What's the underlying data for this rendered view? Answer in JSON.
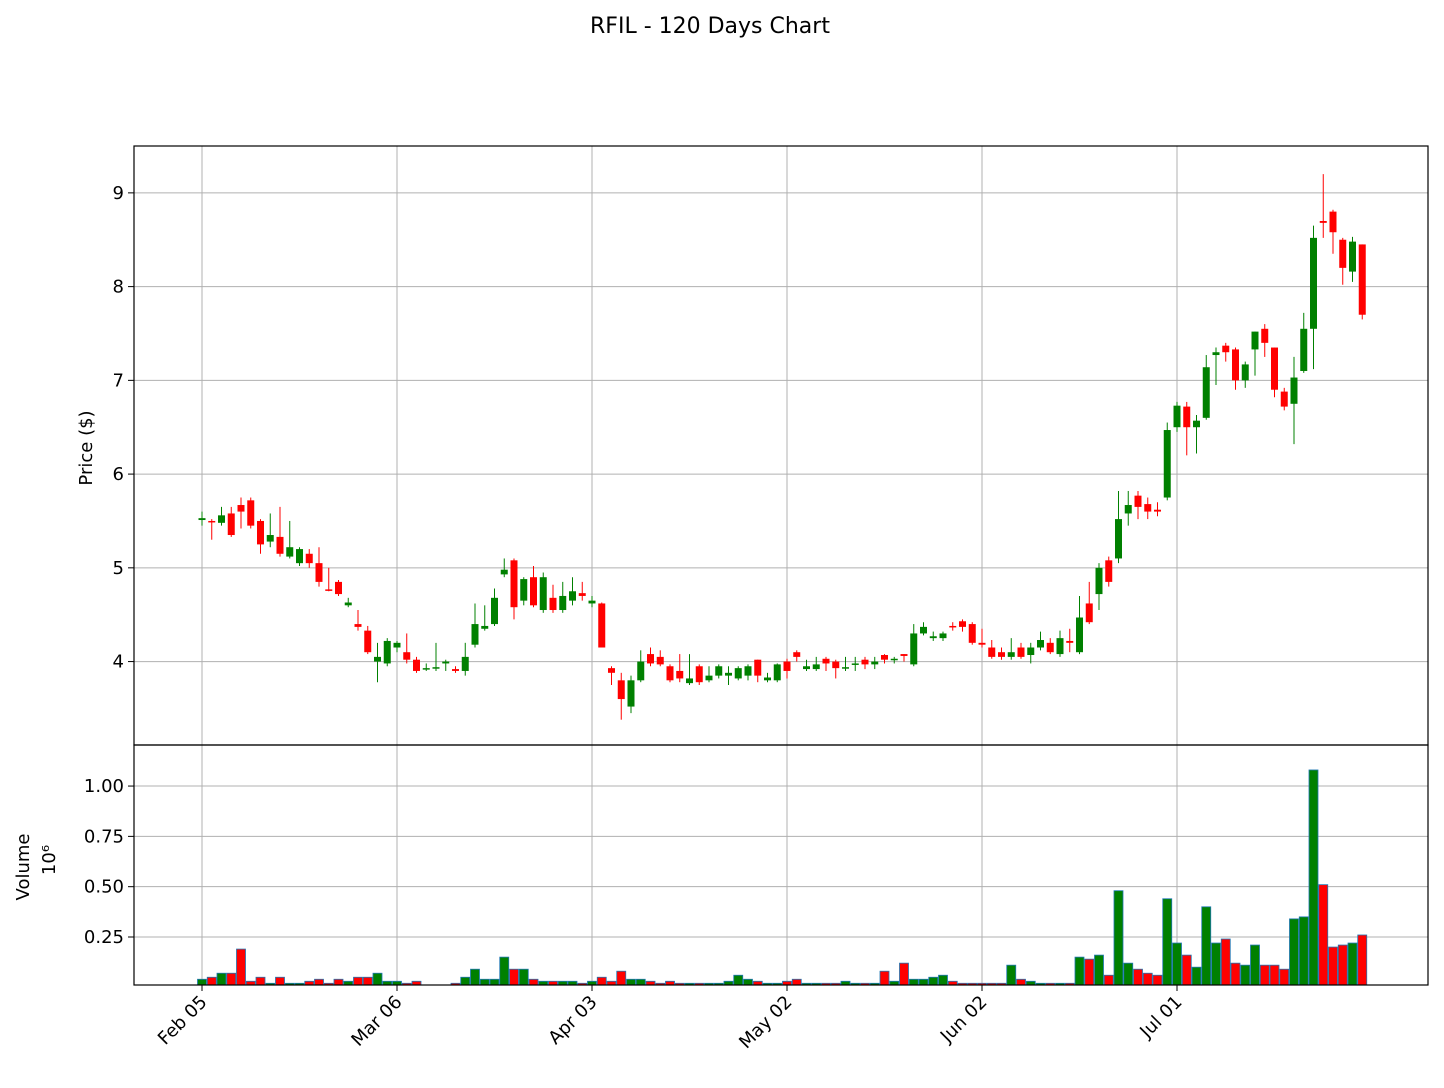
{
  "chart_data": {
    "type": "candlestick",
    "title": "RFIL - 120 Days Chart",
    "ylabel": "Price ($)",
    "y2label": "Volume",
    "y2multiplier": "10⁶",
    "categories": [
      "Feb 05",
      null,
      null,
      null,
      null,
      null,
      null,
      null,
      null,
      null,
      null,
      null,
      null,
      null,
      null,
      null,
      null,
      null,
      null,
      null,
      "Mar 06",
      null,
      null,
      null,
      null,
      null,
      null,
      null,
      null,
      null,
      null,
      null,
      null,
      null,
      null,
      null,
      null,
      null,
      null,
      null,
      "Apr 03",
      null,
      null,
      null,
      null,
      null,
      null,
      null,
      null,
      null,
      null,
      null,
      null,
      null,
      null,
      null,
      null,
      null,
      null,
      null,
      "May 02",
      null,
      null,
      null,
      null,
      null,
      null,
      null,
      null,
      null,
      null,
      null,
      null,
      null,
      null,
      null,
      null,
      null,
      null,
      null,
      "Jun 02",
      null,
      null,
      null,
      null,
      null,
      null,
      null,
      null,
      null,
      null,
      null,
      null,
      null,
      null,
      null,
      null,
      null,
      null,
      null,
      "Jul 01",
      null,
      null,
      null,
      null,
      null,
      null,
      null,
      null,
      null,
      null,
      null,
      null,
      null,
      null,
      null,
      null,
      null,
      null,
      null
    ],
    "open": [
      5.51,
      5.5,
      5.48,
      5.58,
      5.67,
      5.72,
      5.5,
      5.28,
      5.33,
      5.12,
      5.05,
      5.15,
      5.05,
      4.77,
      4.85,
      4.6,
      4.4,
      4.33,
      4.0,
      3.98,
      4.15,
      4.1,
      4.02,
      3.92,
      3.93,
      3.98,
      3.92,
      3.9,
      4.18,
      4.35,
      4.4,
      4.93,
      5.08,
      4.65,
      4.9,
      4.55,
      4.68,
      4.55,
      4.65,
      4.73,
      4.62,
      4.62,
      3.93,
      3.8,
      3.52,
      3.8,
      4.08,
      4.05,
      3.95,
      3.9,
      3.77,
      3.95,
      3.8,
      3.85,
      3.85,
      3.82,
      3.85,
      4.02,
      3.8,
      3.8,
      4.0,
      4.1,
      3.92,
      3.92,
      4.03,
      4.0,
      3.93,
      3.97,
      4.02,
      3.97,
      4.07,
      4.02,
      4.08,
      3.97,
      4.3,
      4.25,
      4.25,
      4.38,
      4.43,
      4.4,
      4.2,
      4.15,
      4.1,
      4.05,
      4.15,
      4.07,
      4.15,
      4.2,
      4.08,
      4.22,
      4.1,
      4.62,
      4.72,
      5.08,
      5.1,
      5.58,
      5.77,
      5.68,
      5.62,
      5.75,
      6.5,
      6.72,
      6.5,
      6.6,
      7.27,
      7.37,
      7.33,
      7.0,
      7.33,
      7.55,
      7.35,
      6.88,
      6.75,
      7.1,
      7.55,
      8.7,
      8.8,
      8.5,
      8.16,
      8.45
    ],
    "high": [
      5.6,
      5.52,
      5.65,
      5.65,
      5.75,
      5.75,
      5.52,
      5.58,
      5.65,
      5.5,
      5.22,
      5.2,
      5.22,
      5.0,
      4.87,
      4.68,
      4.55,
      4.38,
      4.2,
      4.25,
      4.22,
      4.3,
      4.05,
      3.98,
      4.2,
      4.02,
      3.95,
      4.2,
      4.62,
      4.6,
      4.78,
      5.1,
      5.1,
      4.9,
      5.02,
      4.95,
      4.82,
      4.85,
      4.9,
      4.85,
      4.7,
      4.63,
      3.95,
      3.88,
      3.85,
      4.12,
      4.15,
      4.12,
      3.97,
      4.08,
      4.08,
      3.97,
      3.95,
      3.97,
      3.95,
      3.95,
      3.97,
      4.02,
      3.88,
      3.98,
      4.03,
      4.12,
      4.02,
      4.05,
      4.05,
      4.02,
      4.05,
      4.05,
      4.05,
      4.05,
      4.08,
      4.05,
      4.08,
      4.4,
      4.42,
      4.32,
      4.32,
      4.42,
      4.45,
      4.42,
      4.35,
      4.23,
      4.15,
      4.25,
      4.2,
      4.2,
      4.32,
      4.25,
      4.33,
      4.35,
      4.7,
      4.85,
      5.05,
      5.12,
      5.82,
      5.82,
      5.82,
      5.75,
      5.7,
      6.55,
      6.77,
      6.77,
      6.63,
      7.27,
      7.35,
      7.4,
      7.35,
      7.2,
      7.52,
      7.6,
      7.35,
      6.92,
      7.25,
      7.72,
      8.65,
      9.2,
      8.82,
      8.52,
      8.53,
      8.45
    ],
    "low": [
      5.45,
      5.3,
      5.45,
      5.33,
      5.42,
      5.42,
      5.15,
      5.22,
      5.12,
      5.1,
      5.02,
      5.0,
      4.8,
      4.75,
      4.7,
      4.58,
      4.33,
      4.08,
      3.78,
      3.95,
      4.1,
      3.98,
      3.88,
      3.9,
      3.9,
      3.9,
      3.88,
      3.85,
      4.15,
      4.33,
      4.38,
      4.9,
      4.45,
      4.6,
      4.58,
      4.52,
      4.52,
      4.52,
      4.6,
      4.65,
      4.58,
      4.15,
      3.75,
      3.38,
      3.45,
      3.78,
      3.95,
      3.95,
      3.78,
      3.78,
      3.75,
      3.75,
      3.78,
      3.82,
      3.75,
      3.8,
      3.8,
      3.78,
      3.78,
      3.78,
      3.82,
      4.0,
      3.9,
      3.9,
      3.9,
      3.82,
      3.9,
      3.9,
      3.92,
      3.92,
      3.98,
      3.98,
      4.0,
      3.95,
      4.28,
      4.22,
      4.22,
      4.33,
      4.32,
      4.18,
      4.15,
      4.03,
      4.02,
      4.02,
      4.03,
      3.98,
      4.12,
      4.08,
      4.05,
      4.1,
      4.08,
      4.4,
      4.55,
      4.8,
      5.05,
      5.45,
      5.52,
      5.52,
      5.55,
      5.72,
      6.45,
      6.2,
      6.22,
      6.58,
      6.95,
      7.2,
      6.9,
      6.92,
      7.05,
      7.25,
      6.82,
      6.68,
      6.32,
      7.08,
      7.12,
      8.52,
      8.35,
      8.02,
      8.05,
      7.65
    ],
    "close": [
      5.53,
      5.49,
      5.56,
      5.35,
      5.6,
      5.45,
      5.25,
      5.35,
      5.15,
      5.22,
      5.2,
      5.05,
      4.85,
      4.76,
      4.72,
      4.63,
      4.37,
      4.1,
      4.05,
      4.22,
      4.2,
      4.02,
      3.9,
      3.93,
      3.94,
      4.0,
      3.9,
      4.05,
      4.4,
      4.38,
      4.68,
      4.98,
      4.58,
      4.88,
      4.6,
      4.9,
      4.55,
      4.7,
      4.75,
      4.7,
      4.65,
      4.15,
      3.88,
      3.6,
      3.8,
      4.0,
      3.98,
      3.97,
      3.8,
      3.82,
      3.82,
      3.78,
      3.85,
      3.95,
      3.88,
      3.93,
      3.95,
      3.85,
      3.83,
      3.97,
      3.9,
      4.05,
      3.95,
      3.97,
      3.98,
      3.93,
      3.94,
      3.98,
      3.97,
      4.0,
      4.02,
      4.03,
      4.06,
      4.3,
      4.37,
      4.27,
      4.3,
      4.37,
      4.37,
      4.2,
      4.18,
      4.05,
      4.05,
      4.1,
      4.05,
      4.15,
      4.23,
      4.1,
      4.25,
      4.2,
      4.47,
      4.42,
      5.0,
      4.85,
      5.52,
      5.67,
      5.65,
      5.6,
      5.6,
      6.47,
      6.73,
      6.5,
      6.57,
      7.14,
      7.3,
      7.3,
      7.0,
      7.17,
      7.52,
      7.4,
      6.9,
      6.72,
      7.03,
      7.55,
      8.52,
      8.68,
      8.58,
      8.2,
      8.48,
      7.7
    ],
    "volume": [
      0.04,
      0.05,
      0.07,
      0.07,
      0.19,
      0.03,
      0.05,
      0.02,
      0.05,
      0.02,
      0.02,
      0.03,
      0.04,
      0.02,
      0.04,
      0.03,
      0.05,
      0.05,
      0.07,
      0.03,
      0.03,
      0.02,
      0.03,
      0.01,
      0.01,
      0.01,
      0.02,
      0.05,
      0.09,
      0.04,
      0.04,
      0.15,
      0.09,
      0.09,
      0.04,
      0.03,
      0.03,
      0.03,
      0.03,
      0.02,
      0.03,
      0.05,
      0.03,
      0.08,
      0.04,
      0.04,
      0.03,
      0.02,
      0.03,
      0.02,
      0.02,
      0.02,
      0.02,
      0.02,
      0.03,
      0.06,
      0.04,
      0.03,
      0.02,
      0.02,
      0.03,
      0.04,
      0.02,
      0.02,
      0.02,
      0.02,
      0.03,
      0.02,
      0.02,
      0.02,
      0.08,
      0.03,
      0.12,
      0.04,
      0.04,
      0.05,
      0.06,
      0.03,
      0.02,
      0.02,
      0.02,
      0.02,
      0.02,
      0.11,
      0.04,
      0.03,
      0.02,
      0.02,
      0.02,
      0.02,
      0.15,
      0.14,
      0.16,
      0.06,
      0.48,
      0.12,
      0.09,
      0.07,
      0.06,
      0.44,
      0.22,
      0.16,
      0.1,
      0.4,
      0.22,
      0.24,
      0.12,
      0.11,
      0.21,
      0.11,
      0.11,
      0.09,
      0.34,
      0.35,
      1.08,
      0.51,
      0.2,
      0.21,
      0.22,
      0.26
    ],
    "up_color": "#008000",
    "down_color": "#ff0000",
    "ylim": [
      3.11,
      9.5
    ],
    "yticks": [
      4,
      5,
      6,
      7,
      8,
      9
    ],
    "y2lim": [
      0.0115,
      1.204
    ],
    "y2ticks": [
      {
        "value": 0.25,
        "label": "0.25"
      },
      {
        "value": 0.5,
        "label": "0.50"
      },
      {
        "value": 0.75,
        "label": "0.75"
      },
      {
        "value": 1,
        "label": "1.00"
      }
    ],
    "grid": true
  }
}
